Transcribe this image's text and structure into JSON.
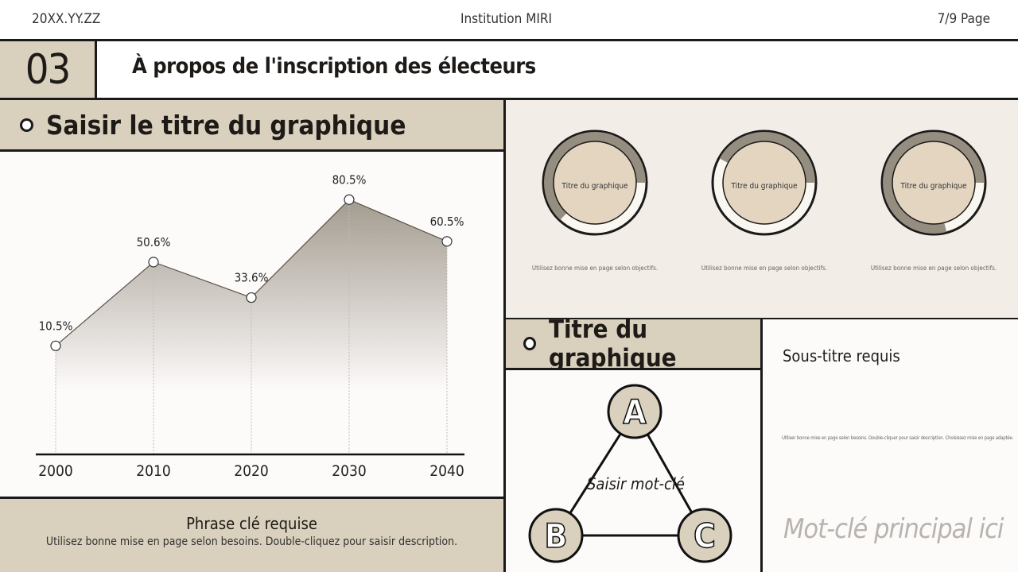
{
  "header": {
    "date": "20XX.YY.ZZ",
    "institution": "Institution MIRI",
    "page": "7/9 Page"
  },
  "title": {
    "number": "03",
    "text": "À propos de l'inscription des électeurs"
  },
  "left": {
    "section_title": "Saisir le titre du graphique",
    "key_phrase": "Phrase clé requise",
    "description": "Utilisez bonne mise en page selon besoins. Double-cliquez pour saisir description."
  },
  "chart_data": {
    "type": "area",
    "categories": [
      "2000",
      "2010",
      "2020",
      "2030",
      "2040"
    ],
    "values": [
      10.5,
      50.6,
      33.6,
      80.5,
      60.5
    ],
    "labels": [
      "10.5%",
      "50.6%",
      "33.6%",
      "80.5%",
      "60.5%"
    ],
    "ylim": [
      -41.5,
      100
    ],
    "grid": false,
    "colors": {
      "line": "#5b5248",
      "fill": "#a39c90"
    }
  },
  "donuts": [
    {
      "label": "Titre du graphique",
      "caption": "Utilisez bonne mise en page selon objectifs.",
      "percent": 63
    },
    {
      "label": "Titre du graphique",
      "caption": "Utilisez bonne mise en page selon objectifs.",
      "percent": 42
    },
    {
      "label": "Titre du graphique",
      "caption": "Utilisez bonne mise en page selon objectifs.",
      "percent": 79
    }
  ],
  "diagram": {
    "section_title": "Titre du graphique",
    "nodes": [
      "A",
      "B",
      "C"
    ],
    "keyword": "Saisir mot-clé"
  },
  "right": {
    "subtitle": "Sous-titre requis",
    "description": "Utiliser bonne mise en page selon besoins. Double-cliquer pour saisir description. Choisissez mise en page adaptée.",
    "main_keyword": "Mot-clé principal ici"
  },
  "colors": {
    "beige": "#d9d0bd",
    "gray": "#958d80",
    "panel": "#f2ede6"
  }
}
